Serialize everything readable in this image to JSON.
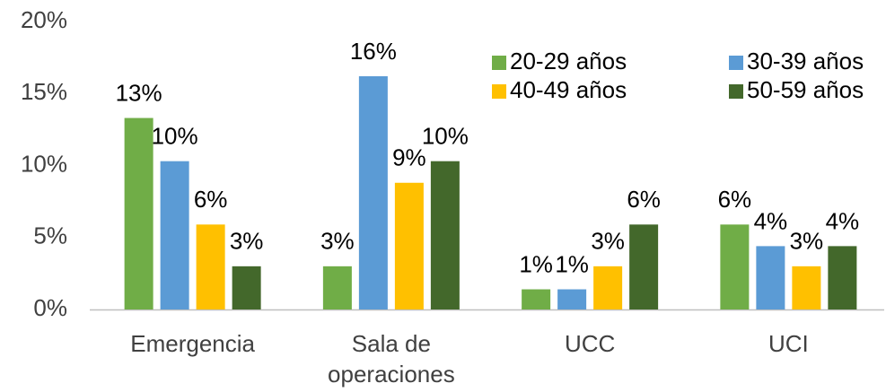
{
  "chart_data": {
    "type": "bar",
    "categories": [
      "Emergencia",
      "Sala de\noperaciones",
      "UCC",
      "UCI"
    ],
    "series": [
      {
        "name": "20-29 años",
        "color": "#70ad47",
        "values": [
          13.3,
          3.0,
          1.4,
          5.9
        ],
        "value_labels": [
          "13%",
          "3%",
          "1%",
          "6%"
        ]
      },
      {
        "name": "30-39 años",
        "color": "#5b9bd5",
        "values": [
          10.3,
          16.2,
          1.4,
          4.4
        ],
        "value_labels": [
          "10%",
          "16%",
          "1%",
          "4%"
        ]
      },
      {
        "name": "40-49 años",
        "color": "#ffc000",
        "values": [
          5.9,
          8.8,
          3.0,
          3.0
        ],
        "value_labels": [
          "6%",
          "9%",
          "3%",
          "3%"
        ]
      },
      {
        "name": "50-59 años",
        "color": "#43682b",
        "values": [
          3.0,
          10.3,
          5.9,
          4.4
        ],
        "value_labels": [
          "3%",
          "10%",
          "6%",
          "4%"
        ]
      }
    ],
    "ylim": [
      0,
      20
    ],
    "yticks": [
      {
        "value": 0,
        "label": "0%"
      },
      {
        "value": 5,
        "label": "5%"
      },
      {
        "value": 10,
        "label": "10%"
      },
      {
        "value": 15,
        "label": "15%"
      },
      {
        "value": 20,
        "label": "20%"
      }
    ],
    "grid": false,
    "legend": "top-right"
  }
}
